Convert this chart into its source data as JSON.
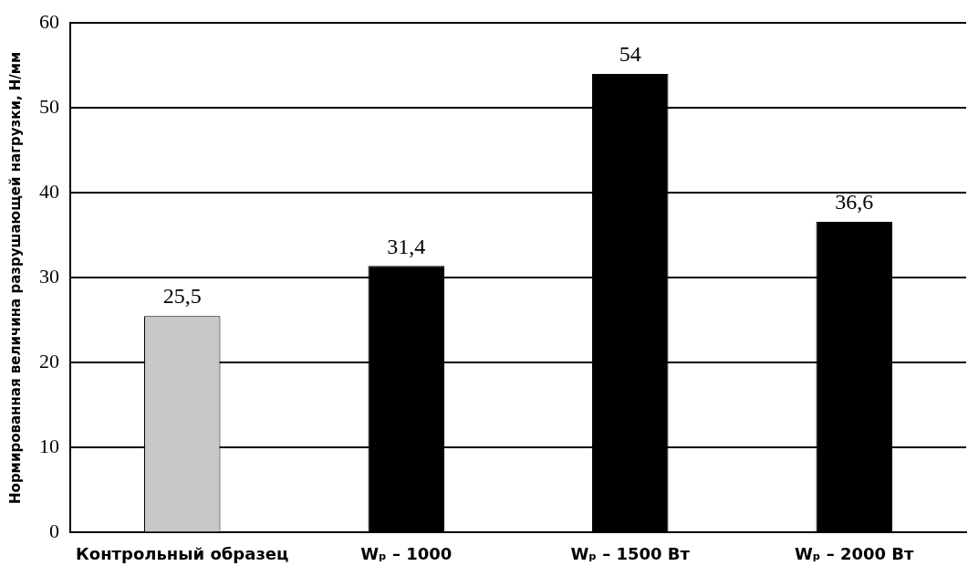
{
  "chart_data": {
    "type": "bar",
    "ylabel": "Нормированная величина разрушающей нагрузки, Н/мм",
    "categories": [
      "Контрольный образец",
      "Wₚ – 1000",
      "Wₚ – 1500 Вт",
      "Wₚ – 2000 Вт"
    ],
    "values": [
      25.5,
      31.4,
      54,
      36.6
    ],
    "colors": [
      "#c8c8c8",
      "#000000",
      "#000000",
      "#000000"
    ],
    "value_labels": [
      "25,5",
      "31,4",
      "54",
      "36,6"
    ],
    "ylim": [
      0,
      60
    ],
    "yticks": [
      0,
      10,
      20,
      30,
      40,
      50,
      60
    ],
    "grid": "y",
    "legend": false
  }
}
